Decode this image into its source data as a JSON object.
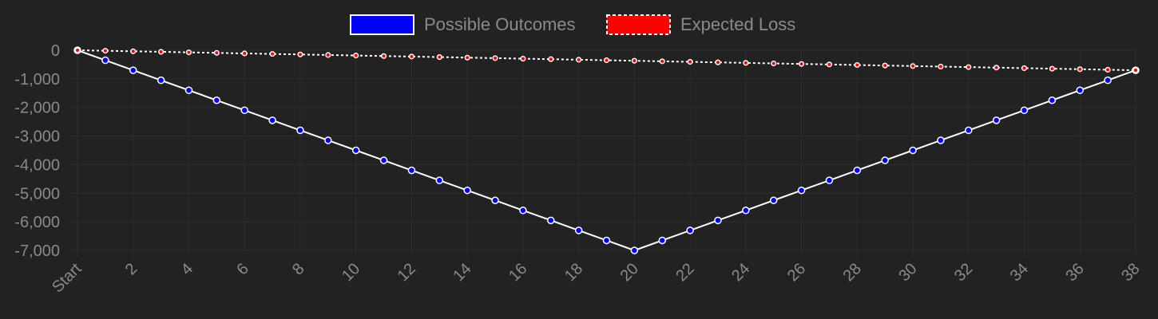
{
  "chart_data": {
    "type": "line",
    "x": [
      "Start",
      "1",
      "2",
      "3",
      "4",
      "5",
      "6",
      "7",
      "8",
      "9",
      "10",
      "11",
      "12",
      "13",
      "14",
      "15",
      "16",
      "17",
      "18",
      "19",
      "20",
      "21",
      "22",
      "23",
      "24",
      "25",
      "26",
      "27",
      "28",
      "29",
      "30",
      "31",
      "32",
      "33",
      "34",
      "35",
      "36",
      "37",
      "38"
    ],
    "x_tick_labels": [
      "Start",
      "2",
      "4",
      "6",
      "8",
      "10",
      "12",
      "14",
      "16",
      "18",
      "20",
      "22",
      "24",
      "26",
      "28",
      "30",
      "32",
      "34",
      "36",
      "38"
    ],
    "y_tick_labels": [
      "0",
      "-1,000",
      "-2,000",
      "-3,000",
      "-4,000",
      "-5,000",
      "-6,000",
      "-7,000"
    ],
    "y_ticks": [
      0,
      -1000,
      -2000,
      -3000,
      -4000,
      -5000,
      -6000,
      -7000
    ],
    "ylim": [
      -7000,
      0
    ],
    "grid": true,
    "legend_position": "top-center",
    "series": [
      {
        "name": "Possible Outcomes",
        "color": "#0000ff",
        "line_color": "#ffffff",
        "line_style": "solid",
        "values": [
          0,
          -350,
          -700,
          -1050,
          -1400,
          -1750,
          -2100,
          -2450,
          -2800,
          -3150,
          -3500,
          -3850,
          -4200,
          -4550,
          -4900,
          -5250,
          -5600,
          -5950,
          -6300,
          -6650,
          -7000,
          -6650,
          -6300,
          -5950,
          -5600,
          -5250,
          -4900,
          -4550,
          -4200,
          -3850,
          -3500,
          -3150,
          -2800,
          -2450,
          -2100,
          -1750,
          -1400,
          -1050,
          -700
        ]
      },
      {
        "name": "Expected Loss",
        "color": "#ff0000",
        "line_color": "#ffffff",
        "line_style": "dashed",
        "values": [
          0,
          -18,
          -37,
          -55,
          -74,
          -92,
          -111,
          -129,
          -147,
          -166,
          -184,
          -203,
          -221,
          -239,
          -258,
          -276,
          -295,
          -313,
          -332,
          -350,
          -368,
          -387,
          -405,
          -424,
          -442,
          -461,
          -479,
          -497,
          -516,
          -534,
          -553,
          -571,
          -589,
          -608,
          -626,
          -645,
          -663,
          -682,
          -700
        ]
      }
    ]
  }
}
